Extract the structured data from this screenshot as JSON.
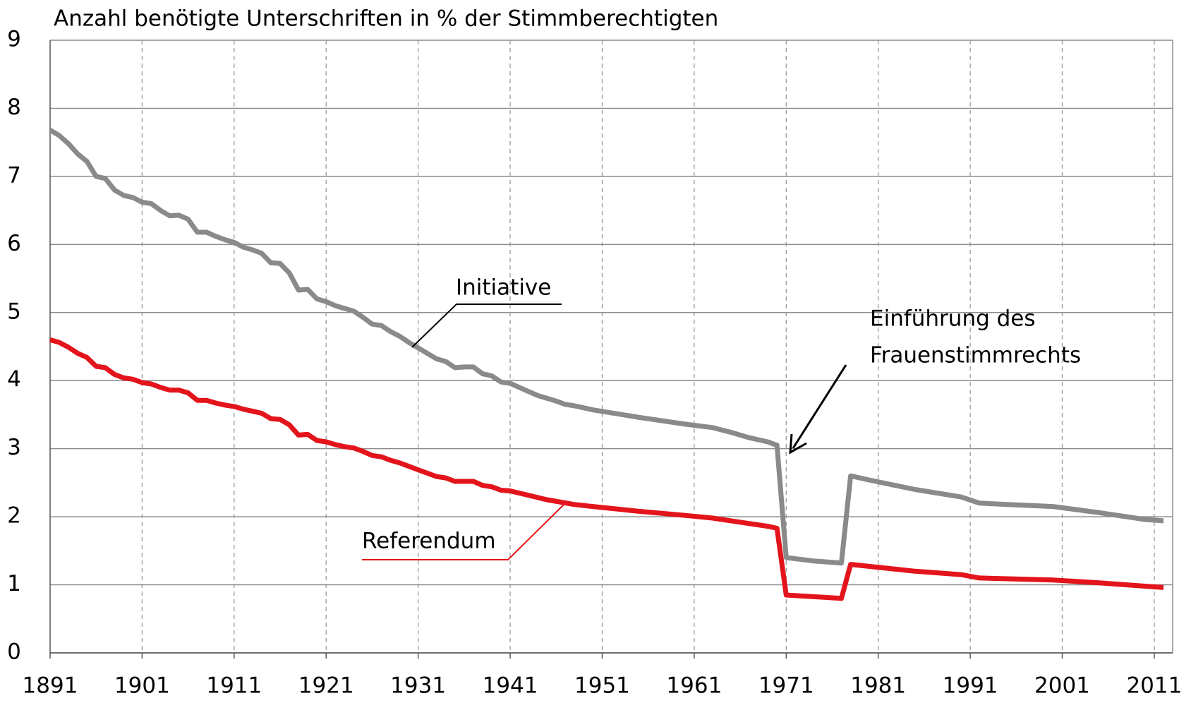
{
  "chart_data": {
    "type": "line",
    "title": "Anzahl benötigte Unterschriften in % der Stimmberechtigten",
    "xlim": [
      1891,
      2013
    ],
    "xticks": [
      1891,
      1901,
      1911,
      1921,
      1931,
      1941,
      1951,
      1961,
      1971,
      1981,
      1991,
      2001,
      2011
    ],
    "ylim": [
      0,
      9
    ],
    "yticks": [
      0,
      1,
      2,
      3,
      4,
      5,
      6,
      7,
      8,
      9
    ],
    "grid": true,
    "annotation": [
      "Einführung des",
      "Frauenstimmrechts"
    ],
    "series": [
      {
        "name": "Initiative",
        "color": "#8a8a8a",
        "x": [
          1891,
          1892,
          1893,
          1894,
          1895,
          1896,
          1897,
          1898,
          1899,
          1900,
          1901,
          1902,
          1903,
          1904,
          1905,
          1906,
          1907,
          1908,
          1909,
          1910,
          1911,
          1912,
          1913,
          1914,
          1915,
          1916,
          1917,
          1918,
          1919,
          1920,
          1921,
          1922,
          1923,
          1924,
          1925,
          1926,
          1927,
          1928,
          1929,
          1930,
          1931,
          1932,
          1933,
          1934,
          1935,
          1936,
          1937,
          1938,
          1939,
          1940,
          1941,
          1942,
          1943,
          1944,
          1945,
          1946,
          1947,
          1948,
          1950,
          1955,
          1960,
          1963,
          1965,
          1967,
          1969,
          1970,
          1971,
          1974,
          1977,
          1978,
          1980,
          1985,
          1990,
          1992,
          1995,
          2000,
          2005,
          2010,
          2012
        ],
        "values": [
          7.68,
          7.6,
          7.48,
          7.33,
          7.22,
          7.0,
          6.97,
          6.8,
          6.72,
          6.69,
          6.62,
          6.6,
          6.5,
          6.42,
          6.43,
          6.37,
          6.18,
          6.18,
          6.12,
          6.07,
          6.03,
          5.96,
          5.92,
          5.87,
          5.73,
          5.72,
          5.58,
          5.33,
          5.34,
          5.2,
          5.16,
          5.1,
          5.06,
          5.02,
          4.93,
          4.83,
          4.81,
          4.72,
          4.65,
          4.56,
          4.48,
          4.4,
          4.32,
          4.28,
          4.19,
          4.2,
          4.2,
          4.1,
          4.07,
          3.98,
          3.96,
          3.9,
          3.84,
          3.78,
          3.74,
          3.7,
          3.65,
          3.63,
          3.57,
          3.46,
          3.36,
          3.31,
          3.24,
          3.16,
          3.1,
          3.05,
          1.4,
          1.35,
          1.32,
          2.6,
          2.54,
          2.4,
          2.29,
          2.2,
          2.18,
          2.15,
          2.06,
          1.96,
          1.94
        ]
      },
      {
        "name": "Referendum",
        "color": "#e3141b",
        "x": [
          1891,
          1892,
          1893,
          1894,
          1895,
          1896,
          1897,
          1898,
          1899,
          1900,
          1901,
          1902,
          1903,
          1904,
          1905,
          1906,
          1907,
          1908,
          1909,
          1910,
          1911,
          1912,
          1913,
          1914,
          1915,
          1916,
          1917,
          1918,
          1919,
          1920,
          1921,
          1922,
          1923,
          1924,
          1925,
          1926,
          1927,
          1928,
          1929,
          1930,
          1931,
          1932,
          1933,
          1934,
          1935,
          1936,
          1937,
          1938,
          1939,
          1940,
          1941,
          1945,
          1948,
          1950,
          1955,
          1960,
          1963,
          1965,
          1969,
          1970,
          1971,
          1977,
          1978,
          1985,
          1990,
          1992,
          2000,
          2005,
          2010,
          2012
        ],
        "values": [
          4.6,
          4.56,
          4.49,
          4.4,
          4.34,
          4.21,
          4.19,
          4.09,
          4.04,
          4.02,
          3.97,
          3.95,
          3.9,
          3.86,
          3.86,
          3.82,
          3.71,
          3.71,
          3.67,
          3.64,
          3.62,
          3.58,
          3.55,
          3.52,
          3.44,
          3.43,
          3.35,
          3.2,
          3.21,
          3.12,
          3.1,
          3.06,
          3.03,
          3.01,
          2.96,
          2.9,
          2.88,
          2.83,
          2.79,
          2.74,
          2.69,
          2.64,
          2.59,
          2.57,
          2.52,
          2.52,
          2.52,
          2.46,
          2.44,
          2.39,
          2.38,
          2.25,
          2.18,
          2.15,
          2.08,
          2.02,
          1.98,
          1.94,
          1.86,
          1.83,
          0.85,
          0.8,
          1.3,
          1.2,
          1.15,
          1.1,
          1.07,
          1.03,
          0.98,
          0.96
        ]
      }
    ]
  }
}
